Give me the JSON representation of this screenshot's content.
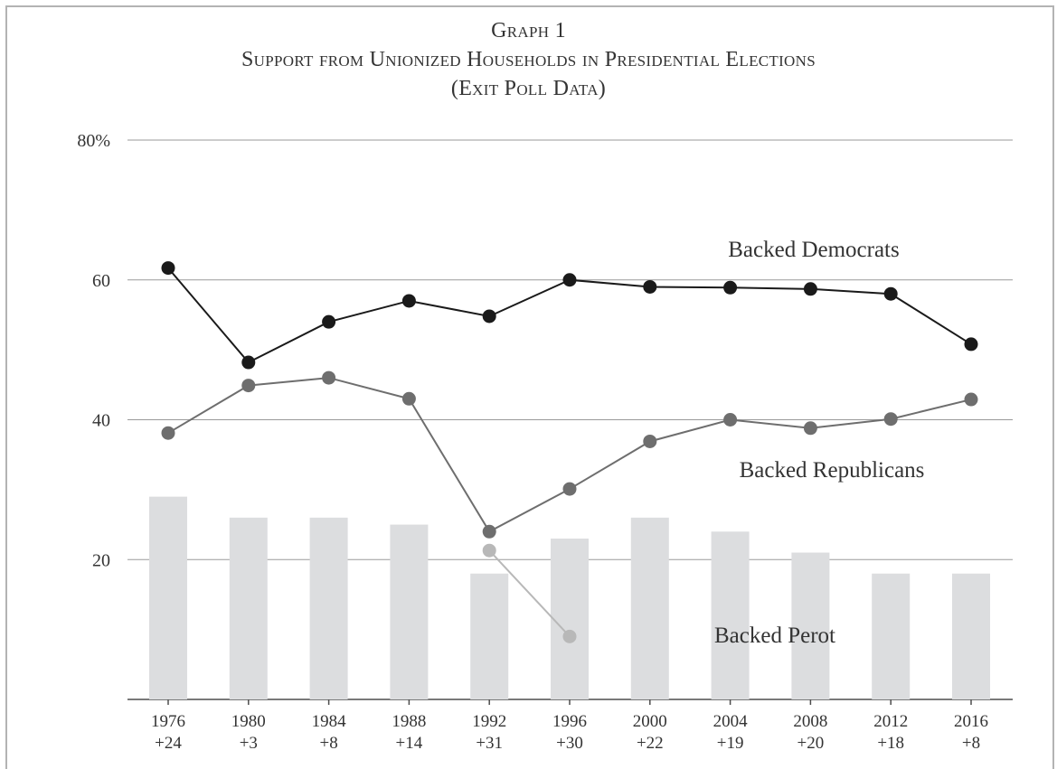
{
  "chart_data": {
    "type": "line",
    "title": "Graph 1",
    "subtitle": "Support from Unionized Households in Presidential Elections",
    "note": "(Exit Poll Data)",
    "categories": [
      "1976",
      "1980",
      "1984",
      "1988",
      "1992",
      "1996",
      "2000",
      "2004",
      "2008",
      "2012",
      "2016"
    ],
    "category_margins": [
      "+24",
      "+3",
      "+8",
      "+14",
      "+31",
      "+30",
      "+22",
      "+19",
      "+20",
      "+18",
      "+8"
    ],
    "ylim": [
      0,
      80
    ],
    "yticks": [
      20,
      40,
      60,
      80
    ],
    "ytick_labels": [
      "20",
      "40",
      "60",
      "80%"
    ],
    "grid": true,
    "bars": {
      "values": [
        29,
        26,
        26,
        25,
        18,
        23,
        26,
        24,
        21,
        18,
        18
      ],
      "color": "#dcdddf"
    },
    "series": [
      {
        "name": "Backed Democrats",
        "values": [
          61.7,
          48.2,
          54,
          57,
          54.8,
          60,
          59,
          58.9,
          58.7,
          58,
          50.8
        ],
        "color": "#1a1a1a"
      },
      {
        "name": "Backed Republicans",
        "values": [
          38.1,
          44.9,
          46,
          43,
          24,
          30.1,
          36.9,
          40,
          38.8,
          40.1,
          42.9
        ],
        "color": "#6e6e6e"
      },
      {
        "name": "Backed Perot",
        "values": [
          null,
          null,
          null,
          null,
          21.3,
          9,
          null,
          null,
          null,
          null,
          null
        ],
        "color": "#b8b8b8"
      }
    ]
  }
}
